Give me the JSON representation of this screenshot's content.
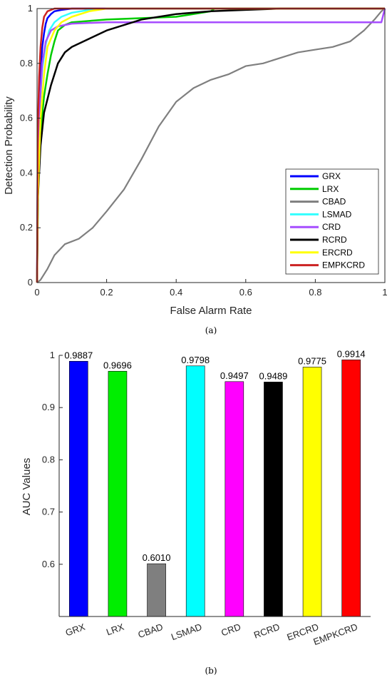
{
  "chart_data": [
    {
      "type": "line",
      "caption": "(a)",
      "xlabel": "False Alarm Rate",
      "ylabel": "Detection Probability",
      "xlim": [
        0,
        1
      ],
      "ylim": [
        0,
        1
      ],
      "xticks": [
        "0",
        "0.2",
        "0.4",
        "0.6",
        "0.8",
        "1"
      ],
      "yticks": [
        "0",
        "0.2",
        "0.4",
        "0.6",
        "0.8",
        "1"
      ],
      "legend_position": "bottom-right",
      "grid": false,
      "series": [
        {
          "name": "GRX",
          "color": "#0000ff",
          "points": [
            [
              0,
              0
            ],
            [
              0.002,
              0.5
            ],
            [
              0.006,
              0.68
            ],
            [
              0.01,
              0.78
            ],
            [
              0.015,
              0.86
            ],
            [
              0.02,
              0.91
            ],
            [
              0.025,
              0.945
            ],
            [
              0.03,
              0.965
            ],
            [
              0.04,
              0.98
            ],
            [
              0.05,
              0.99
            ],
            [
              0.07,
              0.995
            ],
            [
              0.1,
              1
            ],
            [
              1,
              1
            ]
          ]
        },
        {
          "name": "LRX",
          "color": "#00cc00",
          "points": [
            [
              0,
              0
            ],
            [
              0.003,
              0.35
            ],
            [
              0.01,
              0.55
            ],
            [
              0.02,
              0.68
            ],
            [
              0.03,
              0.76
            ],
            [
              0.04,
              0.83
            ],
            [
              0.05,
              0.88
            ],
            [
              0.06,
              0.92
            ],
            [
              0.08,
              0.94
            ],
            [
              0.1,
              0.95
            ],
            [
              0.2,
              0.96
            ],
            [
              0.4,
              0.97
            ],
            [
              0.5,
              0.99
            ],
            [
              0.51,
              1
            ],
            [
              1,
              1
            ]
          ]
        },
        {
          "name": "CBAD",
          "color": "#7f7f7f",
          "points": [
            [
              0,
              0
            ],
            [
              0.01,
              0.01
            ],
            [
              0.03,
              0.05
            ],
            [
              0.05,
              0.1
            ],
            [
              0.08,
              0.14
            ],
            [
              0.12,
              0.16
            ],
            [
              0.16,
              0.2
            ],
            [
              0.2,
              0.26
            ],
            [
              0.25,
              0.34
            ],
            [
              0.3,
              0.45
            ],
            [
              0.35,
              0.57
            ],
            [
              0.4,
              0.66
            ],
            [
              0.45,
              0.71
            ],
            [
              0.5,
              0.74
            ],
            [
              0.55,
              0.76
            ],
            [
              0.6,
              0.79
            ],
            [
              0.65,
              0.8
            ],
            [
              0.7,
              0.82
            ],
            [
              0.75,
              0.84
            ],
            [
              0.8,
              0.85
            ],
            [
              0.85,
              0.86
            ],
            [
              0.9,
              0.88
            ],
            [
              0.94,
              0.92
            ],
            [
              0.97,
              0.96
            ],
            [
              0.99,
              0.99
            ],
            [
              1,
              1
            ]
          ]
        },
        {
          "name": "LSMAD",
          "color": "#33ffff",
          "points": [
            [
              0,
              0
            ],
            [
              0.002,
              0.4
            ],
            [
              0.008,
              0.65
            ],
            [
              0.015,
              0.78
            ],
            [
              0.025,
              0.87
            ],
            [
              0.035,
              0.92
            ],
            [
              0.05,
              0.95
            ],
            [
              0.07,
              0.97
            ],
            [
              0.1,
              0.985
            ],
            [
              0.15,
              0.995
            ],
            [
              0.2,
              1
            ],
            [
              1,
              1
            ]
          ]
        },
        {
          "name": "CRD",
          "color": "#a64dff",
          "points": [
            [
              0,
              0
            ],
            [
              0.002,
              0.4
            ],
            [
              0.008,
              0.65
            ],
            [
              0.015,
              0.8
            ],
            [
              0.025,
              0.88
            ],
            [
              0.04,
              0.92
            ],
            [
              0.06,
              0.935
            ],
            [
              0.1,
              0.945
            ],
            [
              0.2,
              0.95
            ],
            [
              0.5,
              0.95
            ],
            [
              0.99,
              0.95
            ],
            [
              1,
              1
            ]
          ]
        },
        {
          "name": "RCRD",
          "color": "#000000",
          "points": [
            [
              0,
              0
            ],
            [
              0.002,
              0.3
            ],
            [
              0.01,
              0.5
            ],
            [
              0.02,
              0.62
            ],
            [
              0.04,
              0.72
            ],
            [
              0.06,
              0.8
            ],
            [
              0.08,
              0.84
            ],
            [
              0.1,
              0.86
            ],
            [
              0.15,
              0.89
            ],
            [
              0.2,
              0.92
            ],
            [
              0.3,
              0.96
            ],
            [
              0.4,
              0.98
            ],
            [
              0.5,
              0.99
            ],
            [
              0.6,
              0.995
            ],
            [
              0.7,
              1
            ],
            [
              1,
              1
            ]
          ]
        },
        {
          "name": "ERCRD",
          "color": "#ffff00",
          "points": [
            [
              0,
              0
            ],
            [
              0.002,
              0.3
            ],
            [
              0.01,
              0.6
            ],
            [
              0.02,
              0.76
            ],
            [
              0.03,
              0.86
            ],
            [
              0.05,
              0.92
            ],
            [
              0.07,
              0.95
            ],
            [
              0.1,
              0.97
            ],
            [
              0.15,
              0.99
            ],
            [
              0.2,
              1
            ],
            [
              1,
              1
            ]
          ]
        },
        {
          "name": "EMPKCRD",
          "color": "#cc2222",
          "points": [
            [
              0,
              0
            ],
            [
              0.002,
              0.55
            ],
            [
              0.006,
              0.75
            ],
            [
              0.01,
              0.86
            ],
            [
              0.015,
              0.93
            ],
            [
              0.02,
              0.97
            ],
            [
              0.03,
              0.99
            ],
            [
              0.05,
              1
            ],
            [
              1,
              1
            ]
          ]
        }
      ]
    },
    {
      "type": "bar",
      "caption": "(b)",
      "ylabel": "AUC Values",
      "ylim": [
        0.5,
        1.0
      ],
      "yticks": [
        "0.6",
        "0.7",
        "0.8",
        "0.9",
        "1"
      ],
      "categories": [
        "GRX",
        "LRX",
        "CBAD",
        "LSMAD",
        "CRD",
        "RCRD",
        "ERCRD",
        "EMPKCRD"
      ],
      "values": [
        0.9887,
        0.9696,
        0.601,
        0.9798,
        0.9497,
        0.9489,
        0.9775,
        0.9914
      ],
      "value_labels": [
        "0.9887",
        "0.9696",
        "0.6010",
        "0.9798",
        "0.9497",
        "0.9489",
        "0.9775",
        "0.9914"
      ],
      "colors": [
        "#0000ff",
        "#00ee00",
        "#7f7f7f",
        "#00ffff",
        "#ff00ff",
        "#000000",
        "#ffff00",
        "#ff0000"
      ],
      "grid": false
    }
  ]
}
